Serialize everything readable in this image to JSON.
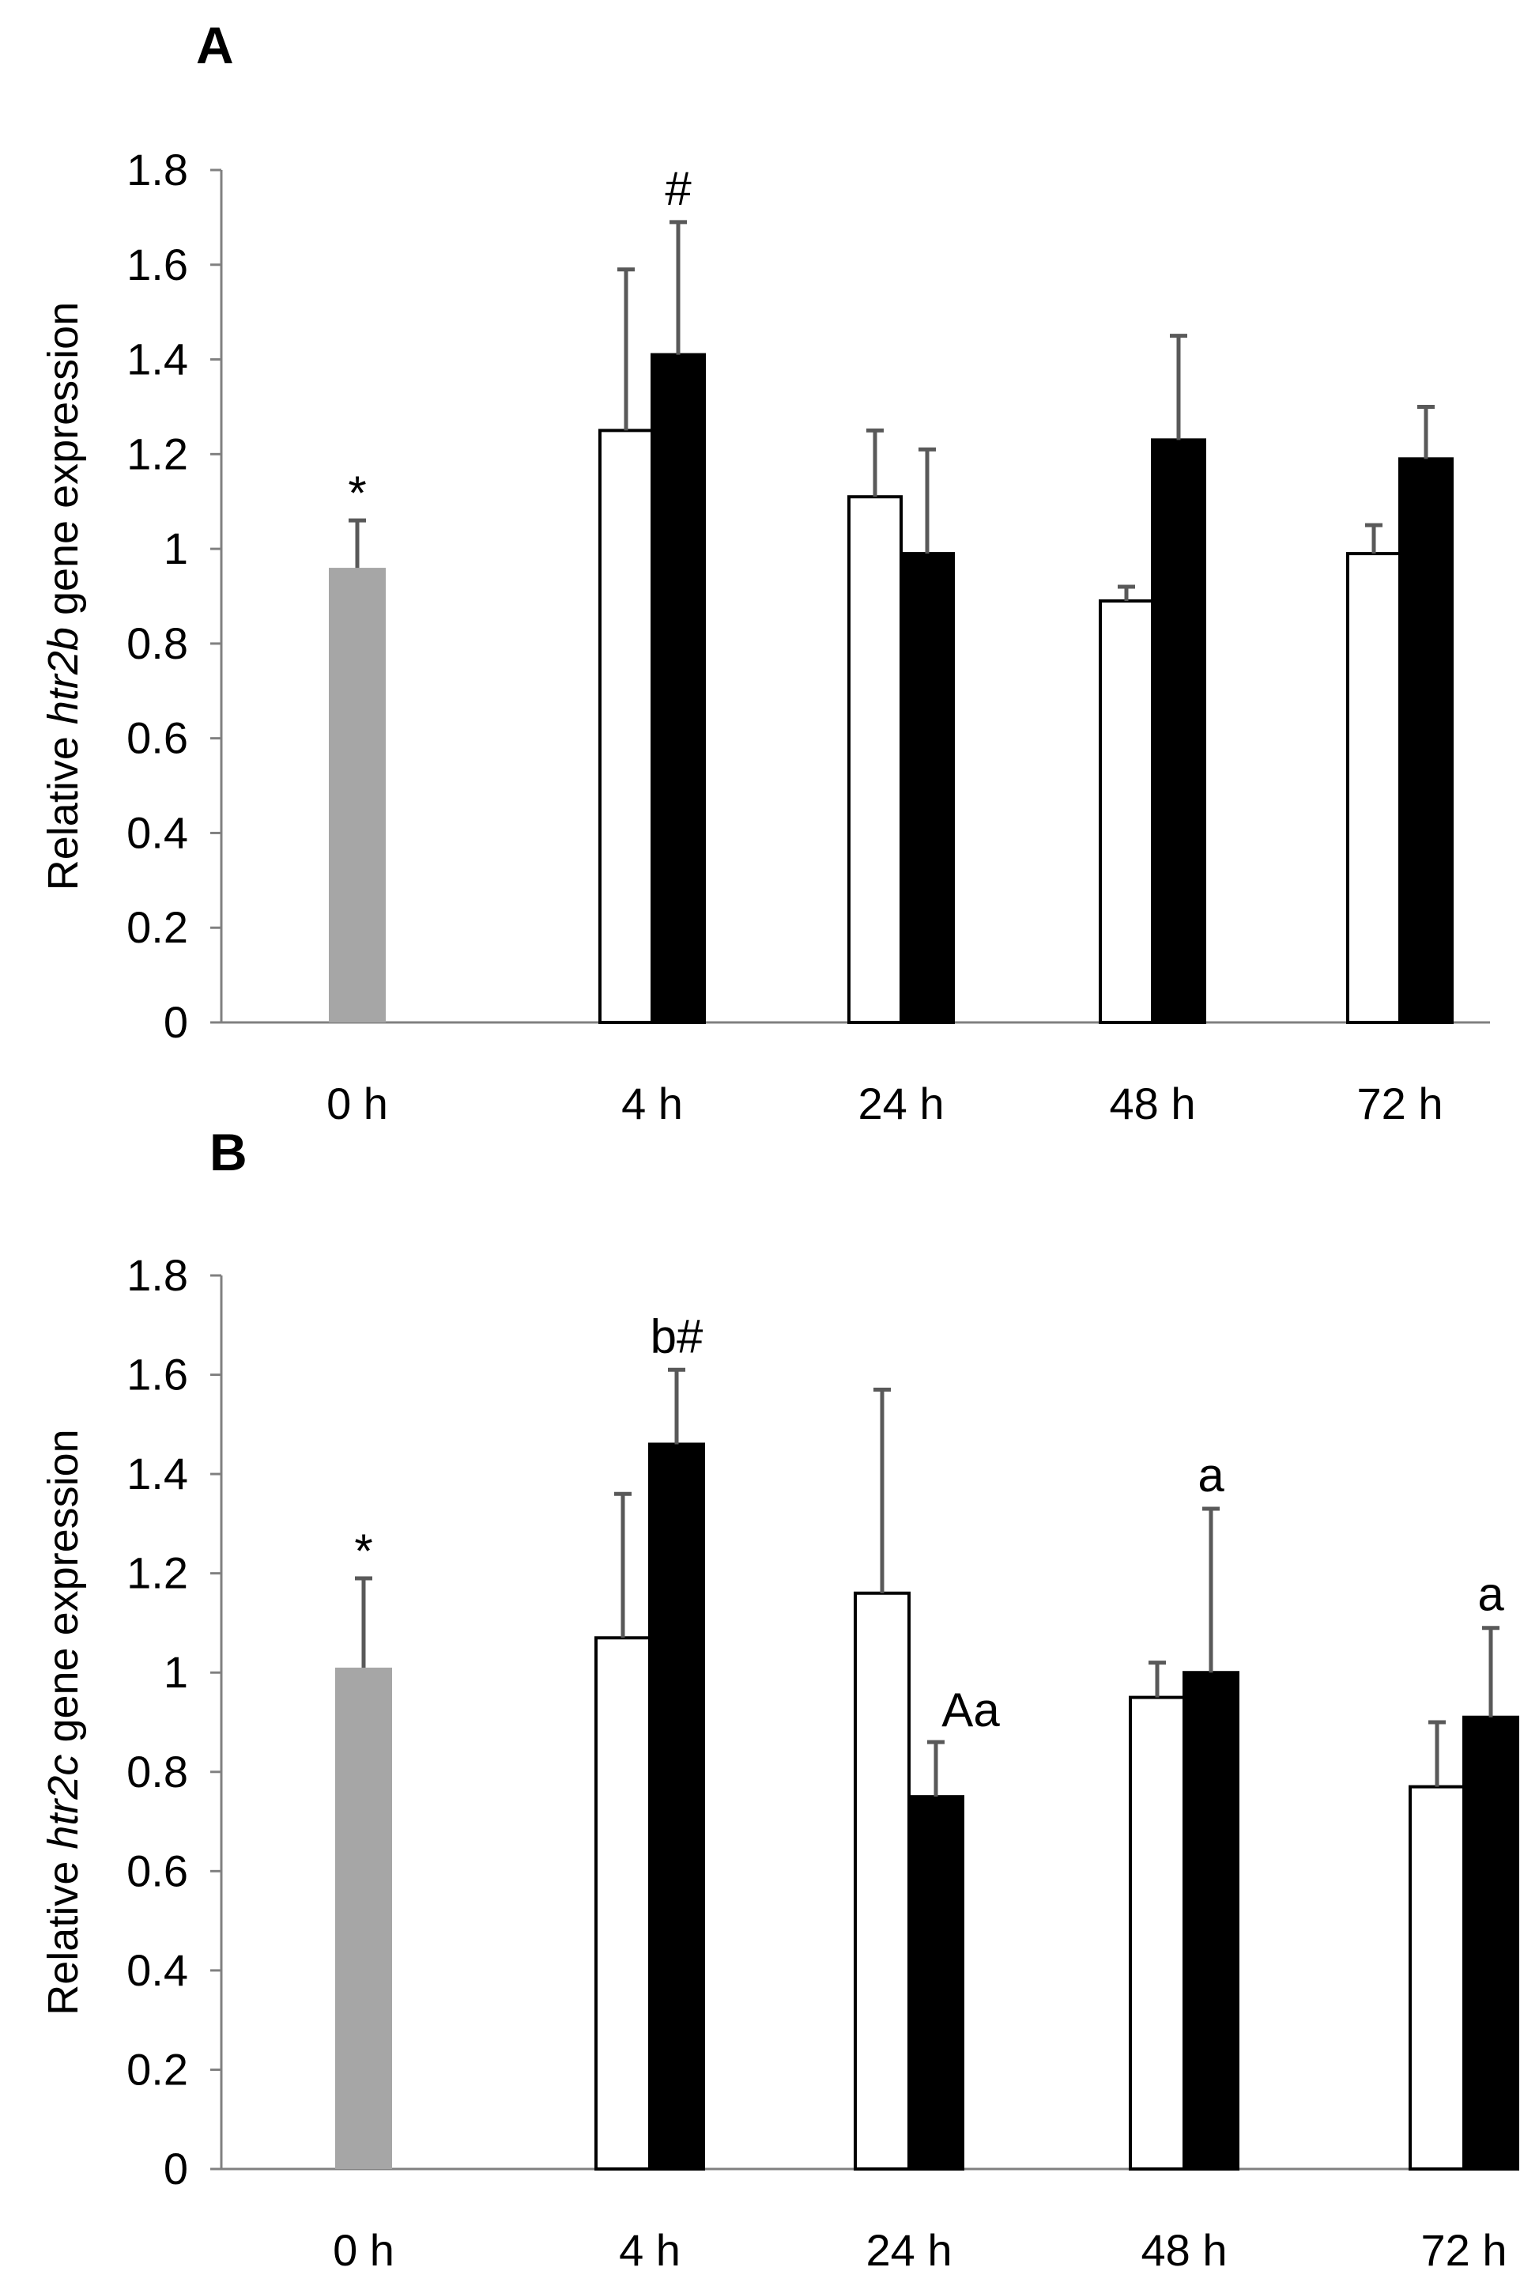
{
  "colors": {
    "baseline": "#a6a6a6",
    "group1": "#ffffff",
    "group2": "#000000",
    "error": "#595959",
    "axis": "#808080"
  },
  "chart_data": [
    {
      "type": "bar",
      "panel": "A",
      "title": "",
      "ylabel_prefix": "Relative ",
      "ylabel_gene": "htr2b",
      "ylabel_suffix": " gene expression",
      "xlabel": "",
      "ylim": [
        0,
        1.8
      ],
      "yticks": [
        "0",
        "0.2",
        "0.4",
        "0.6",
        "0.8",
        "1",
        "1.2",
        "1.4",
        "1.6",
        "1.8"
      ],
      "categories": [
        "0 h",
        "4 h",
        "24 h",
        "48 h",
        "72 h"
      ],
      "baseline": {
        "category": "0 h",
        "value": 0.96,
        "error": 0.1,
        "annotation": "*"
      },
      "series": [
        {
          "name": "group 1 (white)",
          "values": [
            null,
            1.25,
            1.11,
            0.89,
            0.99
          ],
          "errors": [
            null,
            0.34,
            0.14,
            0.03,
            0.06
          ],
          "annotations": [
            null,
            "",
            "",
            "",
            ""
          ]
        },
        {
          "name": "group 2 (black)",
          "values": [
            null,
            1.41,
            0.99,
            1.23,
            1.19
          ],
          "errors": [
            null,
            0.28,
            0.22,
            0.22,
            0.11
          ],
          "annotations": [
            null,
            "#",
            "",
            "",
            ""
          ]
        }
      ]
    },
    {
      "type": "bar",
      "panel": "B",
      "title": "",
      "ylabel_prefix": "Relative ",
      "ylabel_gene": "htr2c",
      "ylabel_suffix": "  gene expression",
      "xlabel": "",
      "ylim": [
        0,
        1.8
      ],
      "yticks": [
        "0",
        "0.2",
        "0.4",
        "0.6",
        "0.8",
        "1",
        "1.2",
        "1.4",
        "1.6",
        "1.8"
      ],
      "categories": [
        "0 h",
        "4 h",
        "24 h",
        "48 h",
        "72 h"
      ],
      "baseline": {
        "category": "0 h",
        "value": 1.01,
        "error": 0.18,
        "annotation": "*"
      },
      "series": [
        {
          "name": "group 1 (white)",
          "values": [
            null,
            1.07,
            1.16,
            0.95,
            0.77
          ],
          "errors": [
            null,
            0.29,
            0.41,
            0.07,
            0.13
          ],
          "annotations": [
            null,
            "",
            "",
            "",
            ""
          ]
        },
        {
          "name": "group 2 (black)",
          "values": [
            null,
            1.46,
            0.75,
            1.0,
            0.91
          ],
          "errors": [
            null,
            0.15,
            0.11,
            0.33,
            0.18
          ],
          "annotations": [
            null,
            "b#",
            "Aa",
            "a",
            "a"
          ]
        }
      ]
    }
  ]
}
